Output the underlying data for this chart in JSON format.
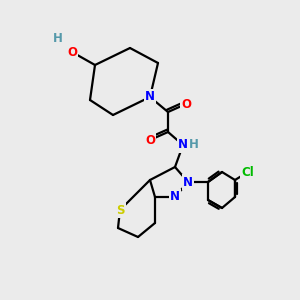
{
  "background_color": "#ebebeb",
  "atom_colors": {
    "N": "#0000ff",
    "O": "#ff0000",
    "S": "#cccc00",
    "Cl": "#00bb00",
    "H": "#5599aa",
    "C": "#000000"
  },
  "figsize": [
    3.0,
    3.0
  ],
  "dpi": 100
}
